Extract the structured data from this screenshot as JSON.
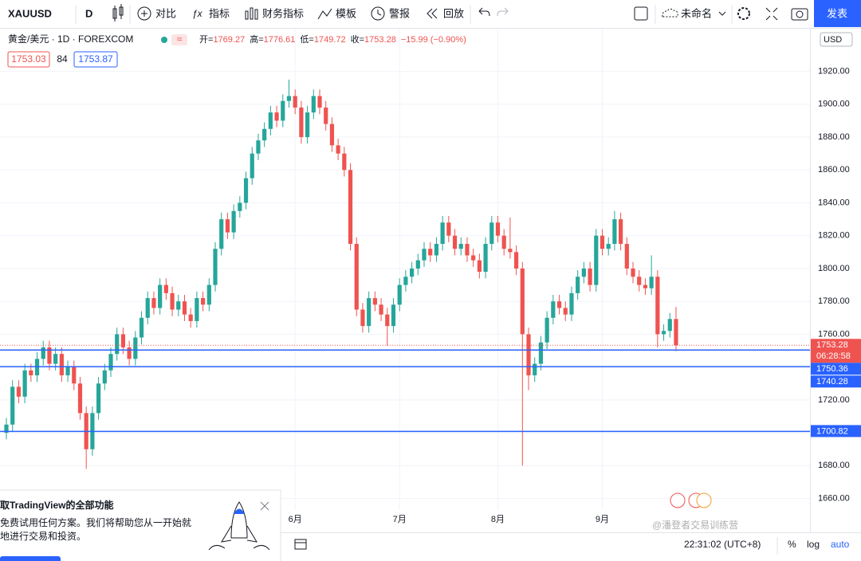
{
  "toolbar": {
    "symbol": "XAUUSD",
    "interval": "D",
    "buttons": [
      "对比",
      "指标",
      "财务指标",
      "模板",
      "警报",
      "回放"
    ],
    "layout_name": "未命名",
    "publish": "发表"
  },
  "legend": {
    "title": "黄金/美元 · 1D · FOREXCOM",
    "open_label": "开=",
    "high_label": "高=",
    "low_label": "低=",
    "close_label": "收=",
    "change": "−15.99 (−0.90%)",
    "bid": "1753.03",
    "spread": "84",
    "ask": "1753.87"
  },
  "axis_currency": "USD",
  "countdown": "06:28:58",
  "bottom_bar": {
    "time": "22:31:02 (UTC+8)",
    "percent": "%",
    "log": "log",
    "auto": "auto"
  },
  "promo": {
    "title": "取TradingView的全部功能",
    "line1": "免费试用任何方案。我们将帮助您从一开始就",
    "line2": "地进行交易和投资。"
  },
  "watermark": "@潘登者交易训练营",
  "chart_data": {
    "type": "candlestick",
    "categories": [
      null,
      null,
      null,
      null,
      null,
      null,
      null,
      null,
      null,
      null,
      null,
      null,
      null,
      null,
      null,
      null,
      null,
      null,
      null,
      null,
      null,
      null,
      null,
      null,
      null,
      null,
      null,
      null,
      null,
      null,
      null,
      null,
      null,
      null,
      null,
      null,
      null,
      null,
      null,
      null,
      null,
      null,
      null,
      null,
      null,
      null,
      null,
      "6月",
      null,
      null,
      null,
      null,
      null,
      null,
      null,
      null,
      null,
      null,
      null,
      null,
      null,
      null,
      null,
      null,
      "7月",
      null,
      null,
      null,
      null,
      null,
      null,
      null,
      null,
      null,
      null,
      null,
      null,
      null,
      null,
      null,
      "8月",
      null,
      null,
      null,
      null,
      null,
      null,
      null,
      null,
      null,
      null,
      null,
      null,
      null,
      null,
      null,
      null,
      "9月",
      null,
      null,
      null,
      null,
      null,
      null,
      null,
      null,
      null,
      null,
      null,
      null
    ],
    "open": [
      1700,
      1705,
      1728,
      1722,
      1738,
      1735,
      1745,
      1752,
      1742,
      1748,
      1735,
      1740,
      1730,
      1712,
      1690,
      1712,
      1730,
      1738,
      1748,
      1760,
      1752,
      1745,
      1758,
      1770,
      1782,
      1776,
      1790,
      1785,
      1775,
      1780,
      1772,
      1768,
      1782,
      1778,
      1790,
      1812,
      1830,
      1822,
      1835,
      1840,
      1855,
      1870,
      1878,
      1885,
      1895,
      1890,
      1902,
      1905,
      1898,
      1880,
      1895,
      1905,
      1898,
      1888,
      1875,
      1870,
      1860,
      1815,
      1775,
      1765,
      1782,
      1778,
      1772,
      1765,
      1778,
      1790,
      1795,
      1800,
      1805,
      1812,
      1808,
      1815,
      1828,
      1820,
      1812,
      1815,
      1808,
      1805,
      1798,
      1815,
      1828,
      1820,
      1812,
      1810,
      1800,
      1760,
      1735,
      1742,
      1755,
      1770,
      1780,
      1776,
      1772,
      1785,
      1795,
      1800,
      1790,
      1820,
      1812,
      1815,
      1830,
      1815,
      1800,
      1795,
      1790,
      1788,
      1795,
      1760,
      1762,
      1769.27
    ],
    "high": [
      1709,
      1732,
      1732,
      1742,
      1742,
      1749,
      1756,
      1756,
      1752,
      1752,
      1744,
      1744,
      1734,
      1716,
      1716,
      1734,
      1742,
      1752,
      1764,
      1764,
      1756,
      1762,
      1774,
      1786,
      1786,
      1794,
      1794,
      1789,
      1784,
      1784,
      1776,
      1786,
      1786,
      1794,
      1816,
      1834,
      1834,
      1839,
      1844,
      1859,
      1874,
      1882,
      1889,
      1899,
      1899,
      1906,
      1915,
      1909,
      1902,
      1899,
      1909,
      1909,
      1902,
      1892,
      1879,
      1874,
      1864,
      1819,
      1779,
      1786,
      1786,
      1782,
      1776,
      1782,
      1794,
      1799,
      1804,
      1809,
      1816,
      1816,
      1819,
      1832,
      1832,
      1824,
      1819,
      1819,
      1812,
      1809,
      1819,
      1832,
      1832,
      1824,
      1831,
      1814,
      1804,
      1764,
      1746,
      1759,
      1774,
      1784,
      1784,
      1780,
      1789,
      1799,
      1804,
      1804,
      1824,
      1824,
      1819,
      1835,
      1834,
      1819,
      1804,
      1799,
      1794,
      1808,
      1799,
      1766,
      1773,
      1776.61
    ],
    "low": [
      1696,
      1701,
      1718,
      1718,
      1731,
      1731,
      1741,
      1738,
      1738,
      1731,
      1731,
      1726,
      1708,
      1678,
      1686,
      1708,
      1726,
      1734,
      1744,
      1748,
      1741,
      1741,
      1754,
      1766,
      1772,
      1772,
      1781,
      1771,
      1771,
      1768,
      1764,
      1764,
      1774,
      1774,
      1786,
      1808,
      1818,
      1818,
      1831,
      1836,
      1851,
      1866,
      1874,
      1881,
      1886,
      1886,
      1898,
      1894,
      1876,
      1876,
      1891,
      1894,
      1884,
      1871,
      1866,
      1856,
      1811,
      1771,
      1761,
      1761,
      1774,
      1768,
      1753,
      1761,
      1774,
      1786,
      1791,
      1796,
      1801,
      1804,
      1804,
      1811,
      1816,
      1808,
      1808,
      1804,
      1801,
      1794,
      1794,
      1811,
      1816,
      1808,
      1806,
      1796,
      1680,
      1726,
      1731,
      1738,
      1751,
      1766,
      1772,
      1768,
      1768,
      1781,
      1791,
      1786,
      1786,
      1808,
      1808,
      1811,
      1811,
      1796,
      1791,
      1786,
      1784,
      1784,
      1752,
      1756,
      1758,
      1749.72
    ],
    "close": [
      1705,
      1728,
      1722,
      1738,
      1735,
      1745,
      1752,
      1742,
      1748,
      1735,
      1740,
      1730,
      1712,
      1690,
      1712,
      1730,
      1738,
      1748,
      1760,
      1752,
      1745,
      1758,
      1770,
      1782,
      1776,
      1790,
      1785,
      1775,
      1780,
      1772,
      1768,
      1782,
      1778,
      1790,
      1812,
      1830,
      1822,
      1835,
      1840,
      1855,
      1870,
      1878,
      1885,
      1895,
      1890,
      1902,
      1905,
      1898,
      1880,
      1895,
      1905,
      1898,
      1888,
      1875,
      1870,
      1860,
      1815,
      1775,
      1765,
      1782,
      1778,
      1772,
      1765,
      1778,
      1790,
      1795,
      1800,
      1805,
      1812,
      1808,
      1815,
      1828,
      1820,
      1812,
      1815,
      1808,
      1805,
      1798,
      1815,
      1828,
      1820,
      1812,
      1810,
      1800,
      1760,
      1735,
      1742,
      1755,
      1770,
      1780,
      1776,
      1772,
      1785,
      1795,
      1800,
      1790,
      1820,
      1812,
      1815,
      1830,
      1815,
      1800,
      1795,
      1790,
      1788,
      1795,
      1760,
      1762,
      1769.27,
      1753.28
    ],
    "up_color": "#26a69a",
    "down_color": "#ef5350",
    "horizontal_lines": {
      "color": "#2962ff",
      "values": [
        1750.36,
        1740.28,
        1700.82
      ]
    },
    "ylim": [
      1653,
      1946
    ],
    "yticks": [
      {
        "value": 1660,
        "label": "1660.00"
      },
      {
        "value": 1680,
        "label": "1680.00"
      },
      {
        "value": 1700,
        "label": "1700.00"
      },
      {
        "value": 1720,
        "label": "1720.00"
      },
      {
        "value": 1740,
        "label": "1740.00"
      },
      {
        "value": 1760,
        "label": "1760.00"
      },
      {
        "value": 1780,
        "label": "1780.00"
      },
      {
        "value": 1800,
        "label": "1800.00"
      },
      {
        "value": 1820,
        "label": "1820.00"
      },
      {
        "value": 1840,
        "label": "1840.00"
      },
      {
        "value": 1860,
        "label": "1860.00"
      },
      {
        "value": 1880,
        "label": "1880.00"
      },
      {
        "value": 1900,
        "label": "1900.00"
      },
      {
        "value": 1920,
        "label": "1920.00"
      }
    ],
    "grid": true
  }
}
